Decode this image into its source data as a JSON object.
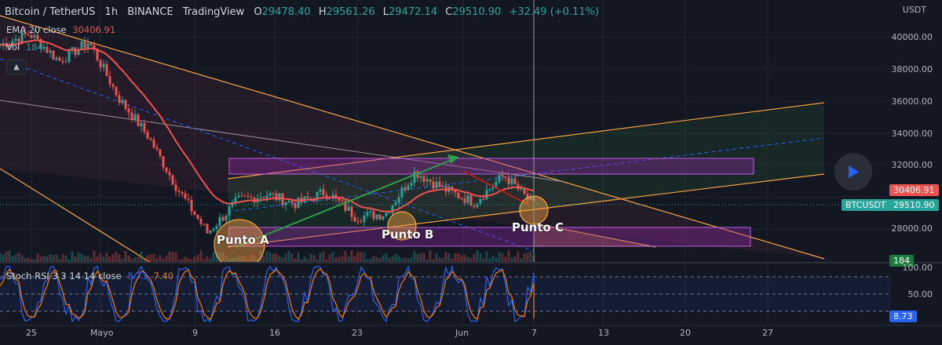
{
  "header": {
    "symbol": "Bitcoin / TetherUS",
    "interval": "1h",
    "exchange": "BINANCE",
    "platform": "TradingView",
    "o_label": "O",
    "o_value": "29478.40",
    "h_label": "H",
    "h_value": "29561.26",
    "l_label": "L",
    "l_value": "29472.14",
    "c_label": "C",
    "c_value": "29510.90",
    "change": "+32.49 (+0.11%)"
  },
  "indicators": {
    "ema_label": "EMA 20 close",
    "ema_value": "30406.91",
    "vol_label": "Vol",
    "vol_value": "184",
    "stoch_label": "Stoch RSI 3 3 14 14 close",
    "stoch_k": "8.73",
    "stoch_d": "7.40"
  },
  "price_axis": {
    "currency": "USDT",
    "ticks": [
      "40000.00",
      "38000.00",
      "36000.00",
      "34000.00",
      "32000.00",
      "28000.00"
    ],
    "ema_tag": "30406.91",
    "symbol_tag": "BTCUSDT",
    "price_tag": "29510.90",
    "vol_tag": "184"
  },
  "stoch_axis": {
    "ticks": [
      "100.00",
      "50.00"
    ],
    "value_tag": "8.73"
  },
  "time_axis": [
    "25",
    "Mayo",
    "9",
    "16",
    "23",
    "Jun",
    "7",
    "13",
    "20",
    "27"
  ],
  "annotations": {
    "point_a": "Punto A",
    "point_b": "Punto B",
    "point_c": "Punto C"
  },
  "colors": {
    "background": "#131722",
    "ema": "#ef5350",
    "bullish": "#26a69a",
    "bearish": "#ef5350",
    "channel": "#f7a541",
    "zone": "#b33fd6",
    "stoch_k": "#2962ff",
    "stoch_d": "#f57c00"
  },
  "chart_data": {
    "type": "candlestick",
    "title": "Bitcoin / TetherUS 1h BINANCE",
    "ylim": [
      26500,
      41500
    ],
    "y_ticks": [
      28000,
      32000,
      34000,
      36000,
      38000,
      40000
    ],
    "x_ticks": [
      "25",
      "Mayo",
      "9",
      "16",
      "23",
      "Jun",
      "7",
      "13",
      "20",
      "27"
    ],
    "last_close": 29510.9,
    "ema20_last": 30406.91,
    "price_path": [
      {
        "x": "Apr 25",
        "y": 39500
      },
      {
        "x": "Apr 28",
        "y": 40200
      },
      {
        "x": "May 1",
        "y": 38500
      },
      {
        "x": "May 5",
        "y": 39700
      },
      {
        "x": "May 7",
        "y": 36200
      },
      {
        "x": "May 9",
        "y": 33800
      },
      {
        "x": "May 11",
        "y": 30500
      },
      {
        "x": "May 12",
        "y": 27800
      },
      {
        "x": "May 14",
        "y": 29800
      },
      {
        "x": "May 16",
        "y": 30200
      },
      {
        "x": "May 20",
        "y": 29600
      },
      {
        "x": "May 23",
        "y": 30400
      },
      {
        "x": "May 26",
        "y": 28800
      },
      {
        "x": "May 28",
        "y": 29000
      },
      {
        "x": "May 31",
        "y": 31600
      },
      {
        "x": "Jun 2",
        "y": 30500
      },
      {
        "x": "Jun 4",
        "y": 29700
      },
      {
        "x": "Jun 6",
        "y": 31400
      },
      {
        "x": "Jun 7",
        "y": 29510
      }
    ],
    "zones": [
      {
        "from": 31050,
        "to": 32350
      },
      {
        "from": 27250,
        "to": 28250
      }
    ],
    "stoch_rsi": {
      "k": 8.73,
      "d": 7.4,
      "range": [
        0,
        100
      ],
      "levels": [
        80,
        20
      ]
    }
  }
}
